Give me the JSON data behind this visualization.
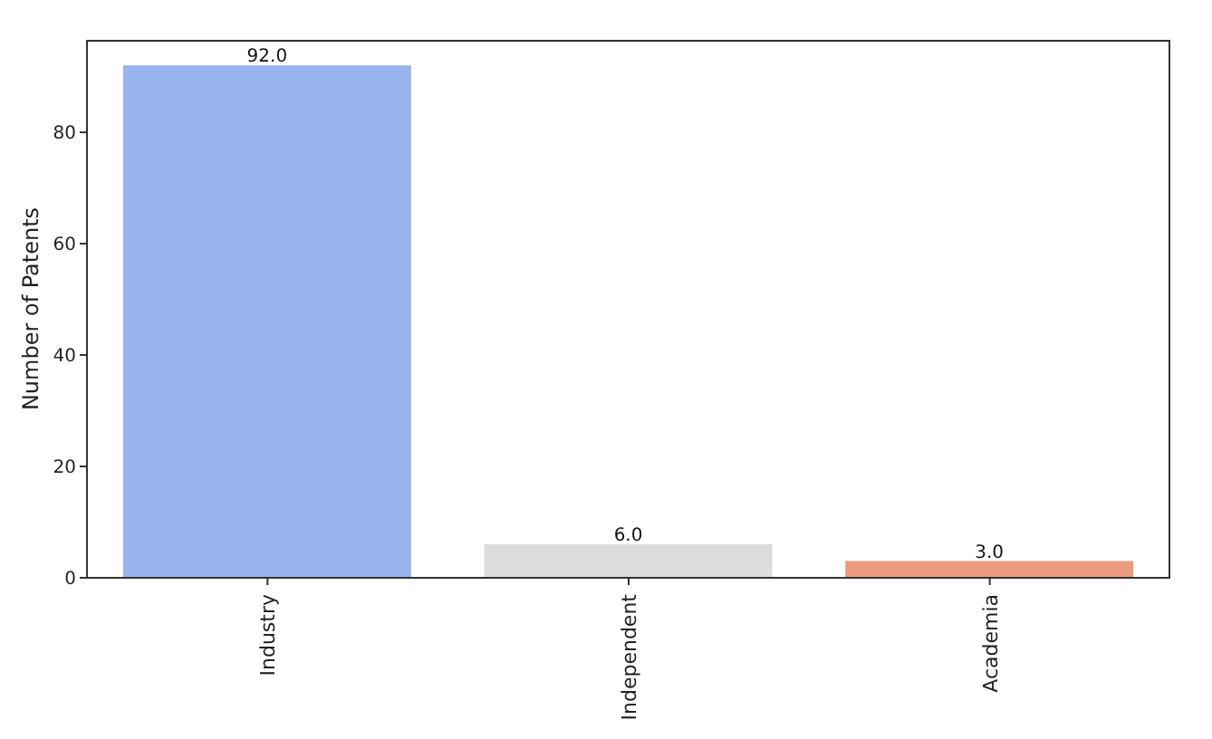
{
  "chart_data": {
    "type": "bar",
    "ylabel": "Number of Patents",
    "categories": [
      "Industry",
      "Independent",
      "Academia"
    ],
    "values": [
      92,
      6,
      3
    ],
    "colors": [
      "#98b3ee",
      "#dcdcdc",
      "#e99a7f"
    ],
    "value_labels": [
      "92.0",
      "6.0",
      "3.0"
    ],
    "ylim": [
      0,
      96.6
    ],
    "yticks": [
      0,
      20,
      40,
      60,
      80
    ]
  }
}
